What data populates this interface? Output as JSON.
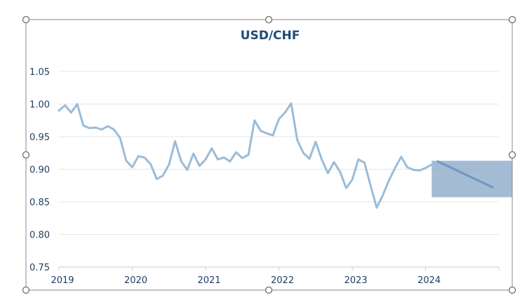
{
  "chart_data": {
    "type": "line",
    "title": "USD/CHF",
    "xlabel": "",
    "ylabel": "",
    "ylim": [
      0.75,
      1.05
    ],
    "yticks": [
      "0.75",
      "0.80",
      "0.85",
      "0.90",
      "0.95",
      "1.00",
      "1.05"
    ],
    "xticks": [
      "2019",
      "2020",
      "2021",
      "2022",
      "2023",
      "2024"
    ],
    "xlim": [
      "2019-01",
      "2025-01"
    ],
    "grid": true,
    "colors": {
      "history": "#9bbcd8",
      "forecast": "#6f97c2",
      "forecast_box": "#8aa8c8",
      "title": "#1f4a78",
      "ticks": "#1f3f63"
    },
    "series": [
      {
        "x": [
          "2019-01",
          "2019-02",
          "2019-03",
          "2019-04",
          "2019-05",
          "2019-06",
          "2019-07",
          "2019-08",
          "2019-09",
          "2019-10",
          "2019-11",
          "2019-12",
          "2020-01",
          "2020-02",
          "2020-03",
          "2020-04",
          "2020-05",
          "2020-06",
          "2020-07",
          "2020-08",
          "2020-09",
          "2020-10",
          "2020-11",
          "2020-12",
          "2021-01",
          "2021-02",
          "2021-03",
          "2021-04",
          "2021-05",
          "2021-06",
          "2021-07",
          "2021-08",
          "2021-09",
          "2021-10",
          "2021-11",
          "2021-12",
          "2022-01",
          "2022-02",
          "2022-03",
          "2022-04",
          "2022-05",
          "2022-06",
          "2022-07",
          "2022-08",
          "2022-09",
          "2022-10",
          "2022-11",
          "2022-12",
          "2023-01",
          "2023-02",
          "2023-03",
          "2023-04",
          "2023-05",
          "2023-06",
          "2023-07",
          "2023-08",
          "2023-09",
          "2023-10",
          "2023-11",
          "2023-12",
          "2024-01",
          "2024-02",
          "2024-03"
        ],
        "values": [
          0.99,
          0.998,
          0.987,
          1.0,
          0.967,
          0.963,
          0.964,
          0.961,
          0.966,
          0.961,
          0.948,
          0.913,
          0.903,
          0.92,
          0.918,
          0.908,
          0.885,
          0.89,
          0.907,
          0.943,
          0.912,
          0.899,
          0.924,
          0.905,
          0.915,
          0.932,
          0.915,
          0.918,
          0.912,
          0.926,
          0.917,
          0.922,
          0.975,
          0.959,
          0.955,
          0.952,
          0.977,
          0.987,
          1.001,
          0.945,
          0.925,
          0.916,
          0.942,
          0.915,
          0.894,
          0.911,
          0.896,
          0.871,
          0.884,
          0.915,
          0.91,
          0.875,
          0.841,
          0.86,
          0.883,
          0.902,
          0.919,
          0.903,
          0.899,
          0.898,
          0.902,
          0.907,
          0.912
        ]
      },
      {
        "x": [
          "2024-03",
          "2024-12"
        ],
        "values": [
          0.912,
          0.872
        ]
      }
    ],
    "forecast_band": {
      "x": [
        "2024-02",
        "2025-01"
      ],
      "y": [
        0.857,
        0.913
      ]
    }
  }
}
